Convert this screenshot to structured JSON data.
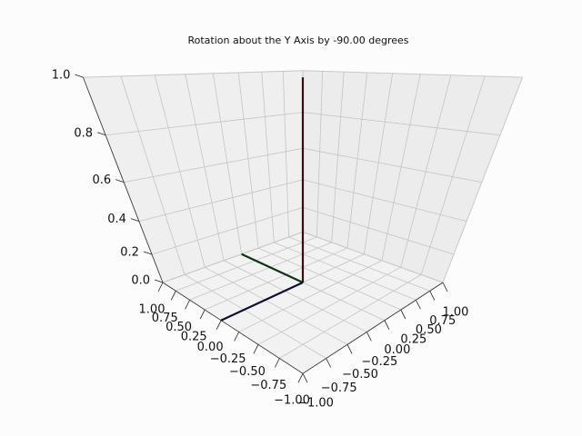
{
  "chart_data": {
    "type": "line3d",
    "title": "Rotation about the Y Axis by -90.00 degrees",
    "series": [
      {
        "color": "#3a0d0d",
        "x": [
          0,
          0
        ],
        "y": [
          0,
          0
        ],
        "z": [
          0,
          1
        ]
      },
      {
        "color": "#0f3312",
        "x": [
          0,
          0
        ],
        "y": [
          0,
          1
        ],
        "z": [
          0,
          0
        ]
      },
      {
        "color": "#0d0d3a",
        "x": [
          0,
          -1
        ],
        "y": [
          0,
          0
        ],
        "z": [
          0,
          0
        ]
      }
    ],
    "xlim": [
      -1,
      1
    ],
    "ylim": [
      -1,
      1
    ],
    "zlim": [
      0,
      1
    ],
    "xticks": [
      {
        "value": -1,
        "label": "−1.00"
      },
      {
        "value": -0.75,
        "label": "−0.75"
      },
      {
        "value": -0.5,
        "label": "−0.50"
      },
      {
        "value": -0.25,
        "label": "−0.25"
      },
      {
        "value": 0,
        "label": "0.00"
      },
      0.25,
      {
        "value": 0.5,
        "label": "0.50"
      },
      0.75,
      {
        "value": 1,
        "label": "1.00"
      }
    ],
    "yticks": [
      {
        "value": -1,
        "label": "−1.00"
      },
      {
        "value": -0.75,
        "label": "−0.75"
      },
      {
        "value": -0.5,
        "label": "−0.50"
      },
      {
        "value": -0.25,
        "label": "−0.25"
      },
      {
        "value": 0,
        "label": "0.00"
      },
      0.25,
      {
        "value": 0.5,
        "label": "0.50"
      },
      0.75,
      {
        "value": 1,
        "label": "1.00"
      }
    ],
    "zticks": [
      {
        "value": 0,
        "label": "0.0"
      },
      0.2,
      0.4,
      0.6,
      0.8,
      {
        "value": 1,
        "label": "1.0"
      }
    ],
    "grid": true
  }
}
